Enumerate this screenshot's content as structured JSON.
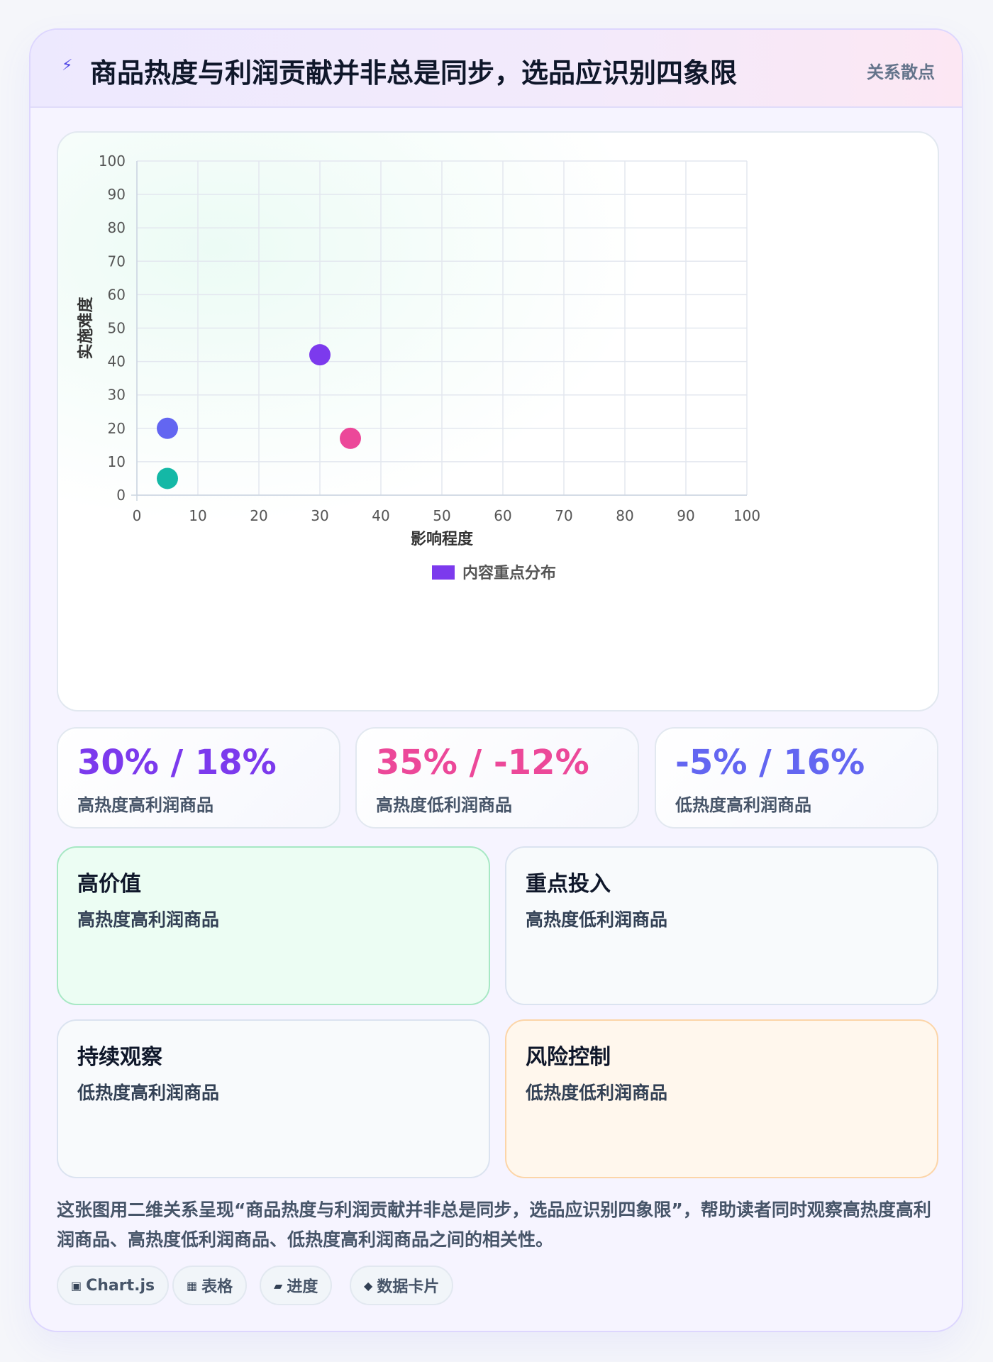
{
  "header": {
    "icon": "lightning-icon",
    "title": "商品热度与利润贡献并非总是同步，选品应识别四象限",
    "chip": "关系散点"
  },
  "chart_data": {
    "type": "scatter",
    "xlabel": "影响程度",
    "ylabel": "实施难度",
    "xlim": [
      0,
      100
    ],
    "ylim": [
      0,
      100
    ],
    "xticks": [
      0,
      10,
      20,
      30,
      40,
      50,
      60,
      70,
      80,
      90,
      100
    ],
    "yticks": [
      0,
      10,
      20,
      30,
      40,
      50,
      60,
      70,
      80,
      90,
      100
    ],
    "grid": true,
    "legend_position": "bottom",
    "series": [
      {
        "name": "内容重点分布",
        "color": "#7c3aed",
        "points": [
          {
            "x": 30,
            "y": 42,
            "color": "#7c3aed"
          },
          {
            "x": 35,
            "y": 17,
            "color": "#ec4899"
          },
          {
            "x": 5,
            "y": 20,
            "color": "#6366f1"
          },
          {
            "x": 5,
            "y": 5,
            "color": "#14b8a6"
          }
        ]
      }
    ]
  },
  "stats": [
    {
      "value": "30% / 18%",
      "label": "高热度高利润商品",
      "color": "#7c3aed"
    },
    {
      "value": "35% / -12%",
      "label": "高热度低利润商品",
      "color": "#ec4899"
    },
    {
      "value": "-5% / 16%",
      "label": "低热度高利润商品",
      "color": "#6366f1"
    }
  ],
  "quadrants": [
    {
      "title": "高价值",
      "desc": "高热度高利润商品",
      "bg": "#ecfdf3",
      "border": "#a7e8c4"
    },
    {
      "title": "重点投入",
      "desc": "高热度低利润商品",
      "bg": "#f8fafc",
      "border": "#dbe3f0"
    },
    {
      "title": "持续观察",
      "desc": "低热度高利润商品",
      "bg": "#f8fafc",
      "border": "#dbe3f0"
    },
    {
      "title": "风险控制",
      "desc": "低热度低利润商品",
      "bg": "#fff7ed",
      "border": "#fcd5a8"
    }
  ],
  "summary": "这张图用二维关系呈现“商品热度与利润贡献并非总是同步，选品应识别四象限”，帮助读者同时观察高热度高利润商品、高热度低利润商品、低热度高利润商品之间的相关性。",
  "tags": [
    {
      "icon": "▣",
      "label": "Chart.js"
    },
    {
      "icon": "▦",
      "label": "表格"
    },
    {
      "icon": "▰",
      "label": "进度"
    },
    {
      "icon": "◆",
      "label": "数据卡片"
    }
  ]
}
